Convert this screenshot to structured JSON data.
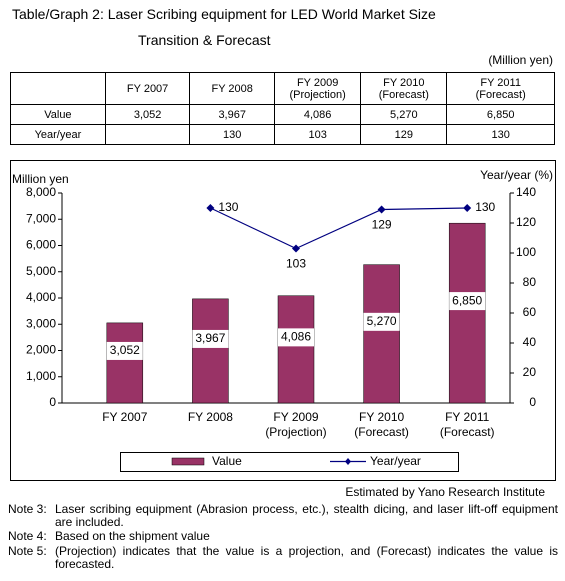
{
  "title": [
    "Table/Graph 2: Laser Scribing equipment for LED World Market Size",
    "Transition & Forecast"
  ],
  "unit": "(Million yen)",
  "table": {
    "columns": [
      [
        "FY 2007"
      ],
      [
        "FY 2008"
      ],
      [
        "FY 2009",
        "(Projection)"
      ],
      [
        "FY 2010",
        "(Forecast)"
      ],
      [
        "FY 2011",
        "(Forecast)"
      ]
    ],
    "rows": [
      {
        "label": "Value",
        "cells": [
          "3,052",
          "3,967",
          "4,086",
          "5,270",
          "6,850"
        ]
      },
      {
        "label": "Year/year",
        "cells": [
          null,
          "130",
          "103",
          "129",
          "130"
        ]
      }
    ]
  },
  "chart_data": {
    "type": "bar",
    "y_label": "Million yen",
    "y2_label": "Year/year (%)",
    "categories": [
      [
        "FY 2007"
      ],
      [
        "FY 2008"
      ],
      [
        "FY 2009",
        "(Projection)"
      ],
      [
        "FY 2010",
        "(Forecast)"
      ],
      [
        "FY 2011",
        "(Forecast)"
      ]
    ],
    "series": [
      {
        "name": "Value",
        "type": "bar",
        "color": "#993366",
        "values": [
          3052,
          3967,
          4086,
          5270,
          6850
        ],
        "value_labels": [
          "3,052",
          "3,967",
          "4,086",
          "5,270",
          "6,850"
        ]
      },
      {
        "name": "Year/year",
        "type": "line",
        "axis": "y2",
        "color": "#000080",
        "values": [
          null,
          130,
          103,
          129,
          130
        ]
      }
    ],
    "ylim": [
      0,
      8000
    ],
    "yticks": [
      0,
      {
        "value": 1000,
        "label": "1,000"
      },
      {
        "value": 2000,
        "label": "2,000"
      },
      {
        "value": 3000,
        "label": "3,000"
      },
      {
        "value": 4000,
        "label": "4,000"
      },
      {
        "value": 5000,
        "label": "5,000"
      },
      {
        "value": 6000,
        "label": "6,000"
      },
      {
        "value": 7000,
        "label": "7,000"
      },
      {
        "value": 8000,
        "label": "8,000"
      }
    ],
    "y2lim": [
      0,
      140
    ],
    "y2ticks": [
      0,
      20,
      40,
      60,
      80,
      100,
      120,
      140
    ],
    "grid": false
  },
  "source": "Estimated by Yano Research Institute",
  "notes": [
    {
      "label": "Note 3:",
      "text": "Laser scribing equipment (Abrasion process, etc.), stealth dicing, and laser lift-off equipment are included."
    },
    {
      "label": "Note 4:",
      "text": "Based on the shipment value"
    },
    {
      "label": "Note 5:",
      "text": "(Projection) indicates that the value is a projection, and (Forecast) indicates the value is forecasted."
    }
  ]
}
